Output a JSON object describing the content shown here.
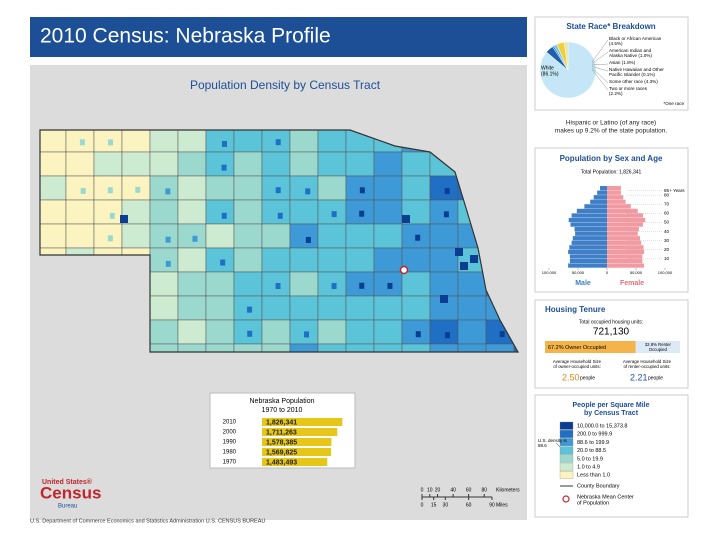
{
  "header": {
    "title": "2010 Census: Nebraska Profile"
  },
  "map": {
    "title": "Population Density by Census Tract",
    "legend": {
      "title": [
        "People per Square Mile",
        "by Census Tract"
      ],
      "classes": [
        {
          "label": "10,000.0 to 15,373.8",
          "color": "#0b3d91"
        },
        {
          "label": "200.0 to 999.9",
          "color": "#1f6fc5"
        },
        {
          "label": "88.6 to 199.9",
          "color": "#3d9ad6"
        },
        {
          "label": "20.0 to 88.5",
          "color": "#5cc4d8"
        },
        {
          "label": "5.0 to 19.9",
          "color": "#9bd9cf"
        },
        {
          "label": "1.0 to 4.9",
          "color": "#cdebd1"
        },
        {
          "label": "Less than 1.0",
          "color": "#fcf4c0"
        }
      ],
      "us_note": [
        "U.S. density is",
        "88.6"
      ],
      "boundary": "County Boundary",
      "center": [
        "Nebraska Mean Center",
        "of Population"
      ]
    },
    "scale": {
      "top": [
        0,
        10,
        20,
        40,
        60,
        80
      ],
      "top_unit": "Kilometers",
      "bottom": [
        0,
        15,
        30,
        60,
        90
      ],
      "bottom_unit": "Miles",
      "xlim": [
        0,
        90
      ]
    }
  },
  "history": {
    "title": "Nebraska Population",
    "subtitle": "1970 to 2010",
    "years": [
      "2010",
      "2000",
      "1990",
      "1980",
      "1970"
    ],
    "values": [
      1826341,
      1711263,
      1578385,
      1569825,
      1483493
    ],
    "value_labels": [
      "1,826,341",
      "1,711,263",
      "1,578,385",
      "1,569,825",
      "1,483,493"
    ],
    "color": "#e6c619",
    "xlim": [
      0,
      2000000
    ]
  },
  "race": {
    "title": "State Race* Breakdown",
    "slices": [
      {
        "label": [
          "White",
          "(86.1%)"
        ],
        "value": 86.1,
        "color": "#c4e6f6"
      },
      {
        "label": [
          "Black or African American",
          "(4.5%)"
        ],
        "value": 4.5,
        "color": "#1f5fa8"
      },
      {
        "label": [
          "American Indian and",
          "Alaska Native (1.0%)"
        ],
        "value": 1.0,
        "color": "#3b8fd0"
      },
      {
        "label": [
          "Asian (1.8%)"
        ],
        "value": 1.8,
        "color": "#7cc0e8"
      },
      {
        "label": [
          "Native Hawaiian and Other",
          "Pacific Islander (0.1%)"
        ],
        "value": 0.1,
        "color": "#0b3d91"
      },
      {
        "label": [
          "Some other race (4.3%)"
        ],
        "value": 4.3,
        "color": "#f0cf3a"
      },
      {
        "label": [
          "Two or more races",
          "(2.2%)"
        ],
        "value": 2.2,
        "color": "#e6e6a8"
      }
    ],
    "note": "*One race"
  },
  "hispanic": {
    "text": [
      "Hispanic or Latino (of any race)",
      "makes up 9.2% of the state population."
    ]
  },
  "pyramid": {
    "title": "Population by Sex and Age",
    "total": "Total Population: 1,826,341",
    "male_label": "Male",
    "female_label": "Female",
    "ylim": [
      0,
      90
    ],
    "yticks": [
      {
        "value": 85,
        "label": "85+ Years"
      },
      80,
      70,
      60,
      50,
      40,
      30,
      20,
      10
    ],
    "xlim": [
      -100000,
      100000
    ],
    "xticks": [
      {
        "value": -100000,
        "label": "100,000"
      },
      {
        "value": -50000,
        "label": "50,000"
      },
      0,
      {
        "value": 50000,
        "label": "50,000"
      },
      {
        "value": 100000,
        "label": "100,000"
      }
    ],
    "male": [
      67000,
      64000,
      64000,
      67000,
      65000,
      61000,
      59000,
      55000,
      56000,
      63000,
      66000,
      61000,
      52000,
      39000,
      29000,
      23000,
      17000,
      12000
    ],
    "female": [
      64000,
      61000,
      61000,
      64000,
      63000,
      59000,
      57000,
      53000,
      55000,
      62000,
      66000,
      62000,
      53000,
      41000,
      32000,
      28000,
      24000,
      24000
    ]
  },
  "housing": {
    "title": "Housing Tenure",
    "total_label": "Total occupied housing units:",
    "total": "721,130",
    "owner": {
      "value": 67.2,
      "label": "67.2% Owner Occupied"
    },
    "renter": {
      "value": 32.8,
      "label": [
        "32.8% Renter",
        "Occupied"
      ]
    },
    "owner_size_label": [
      "Average Household Size",
      "of owner-occupied units:"
    ],
    "owner_size": "2.50",
    "renter_size_label": [
      "Average Household Size",
      "of renter-occupied units:"
    ],
    "renter_size": "2.21",
    "unit": "people"
  },
  "footer": {
    "logo_top": "United States®",
    "logo_main": "Census",
    "logo_bottom": "Bureau",
    "agency": "U.S. Department of Commerce  Economics and Statistics Administration  U.S. CENSUS BUREAU"
  }
}
